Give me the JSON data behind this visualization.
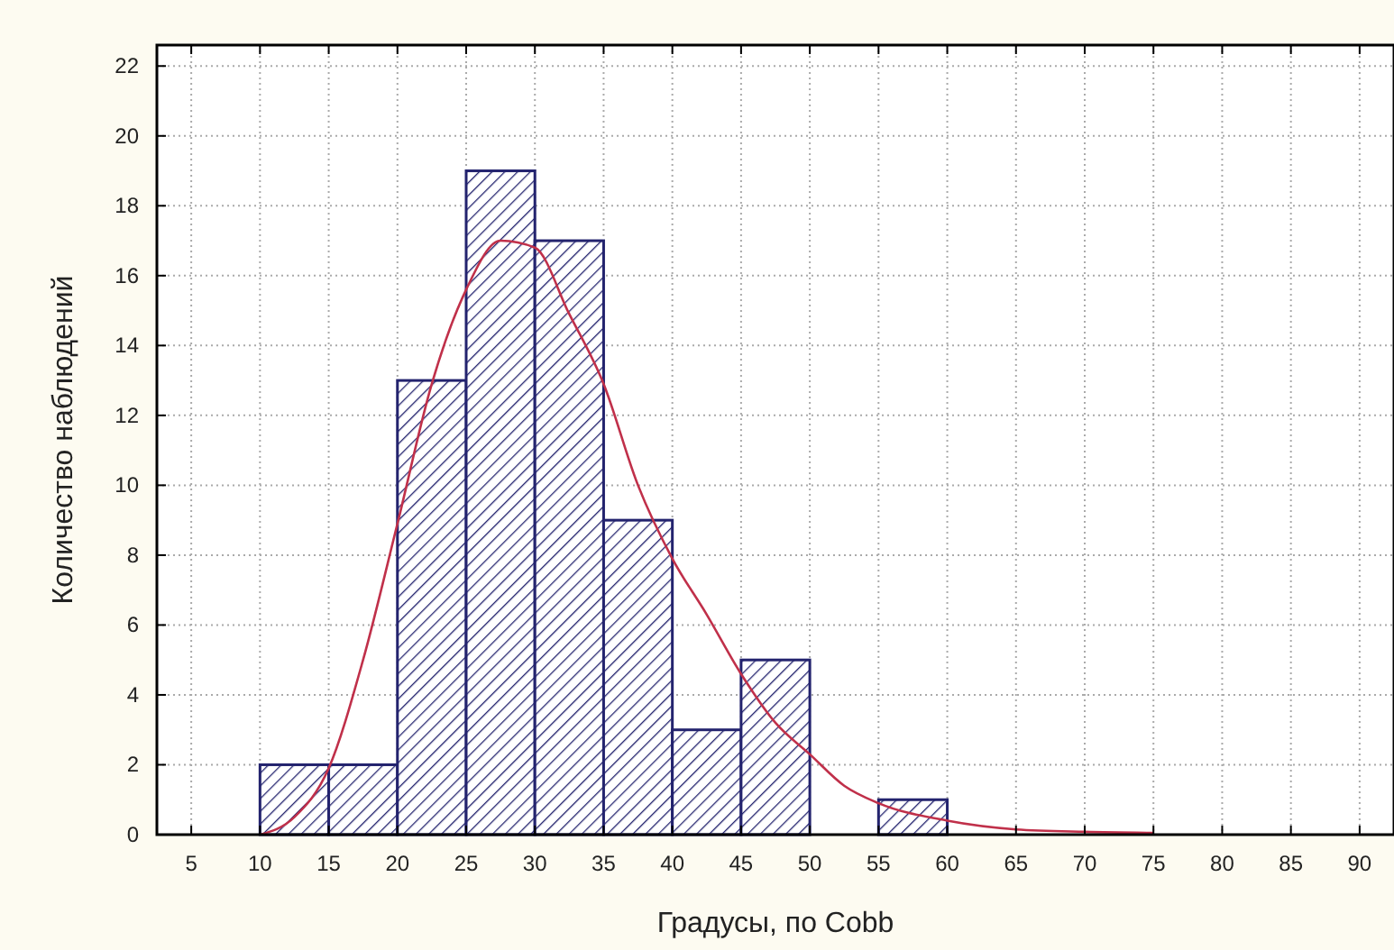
{
  "chart_data": {
    "type": "histogram",
    "xlabel": "Градусы, по Cobb",
    "ylabel": "Количество наблюдений",
    "xlim": [
      2.5,
      92.5
    ],
    "xticks": [
      5,
      10,
      15,
      20,
      25,
      30,
      35,
      40,
      45,
      50,
      55,
      60,
      65,
      70,
      75,
      80,
      85,
      90
    ],
    "ylim": [
      0,
      22.6
    ],
    "yticks": [
      0,
      2,
      4,
      6,
      8,
      10,
      12,
      14,
      16,
      18,
      20,
      22
    ],
    "grid": true,
    "line_style": "solid",
    "marker": "none",
    "series": [
      {
        "color": "#23236e",
        "bins": [
          10,
          15,
          20,
          25,
          30,
          35,
          40,
          45,
          50,
          55,
          60
        ],
        "values": [
          2,
          2,
          13,
          19,
          17,
          9,
          3,
          5,
          0,
          1
        ]
      },
      {
        "type": "line",
        "color": "#c0304a",
        "x": [
          10,
          12.5,
          15,
          17.5,
          20,
          22.5,
          25,
          27.5,
          30,
          32.5,
          35,
          37.5,
          40,
          42.5,
          45,
          47.5,
          50,
          52.5,
          55,
          60,
          65,
          70,
          75
        ],
        "values": [
          0,
          0.5,
          1.9,
          5,
          8.9,
          12.9,
          15.6,
          17,
          16.8,
          14.9,
          12.9,
          10,
          7.9,
          6.3,
          4.6,
          3.2,
          2.3,
          1.4,
          0.9,
          0.4,
          0.15,
          0.08,
          0.05
        ]
      }
    ]
  }
}
